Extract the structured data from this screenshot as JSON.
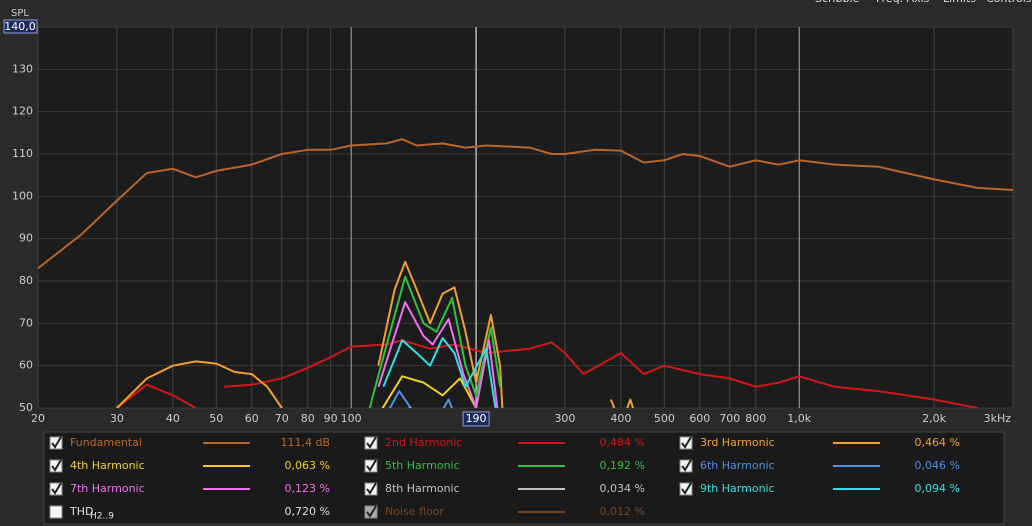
{
  "chart_data": {
    "type": "line",
    "log_x": true,
    "y_label": "SPL",
    "x_unit": "kHz",
    "xlim": [
      20,
      3000
    ],
    "ylim": [
      50,
      140
    ],
    "xticks": [
      20,
      30,
      40,
      50,
      60,
      70,
      80,
      90,
      100,
      300,
      400,
      500,
      600,
      700,
      800,
      {
        "value": 1000,
        "label": "1,0k"
      },
      {
        "value": 2000,
        "label": "2,0k"
      },
      {
        "value": 3000,
        "label": "3kHz"
      }
    ],
    "yticks": [
      50,
      60,
      70,
      80,
      90,
      100,
      110,
      120,
      130,
      {
        "value": 140,
        "label": "140,0"
      }
    ],
    "cursor": 190,
    "menu": [
      "Scribble",
      "Freq. Axis",
      "Limits",
      "Controls"
    ],
    "series": [
      {
        "name": "Fundamental",
        "color": "#b8652a",
        "checked": true,
        "legend_value": "111,4 dB",
        "x": [
          20,
          25,
          30,
          35,
          40,
          45,
          50,
          60,
          70,
          80,
          90,
          100,
          120,
          130,
          140,
          160,
          180,
          200,
          250,
          280,
          300,
          350,
          400,
          450,
          500,
          550,
          600,
          700,
          800,
          900,
          1000,
          1200,
          1500,
          2000,
          2500,
          3000
        ],
        "values": [
          83,
          91,
          99,
          105.5,
          106.5,
          104.5,
          106,
          107.5,
          110,
          111,
          111,
          112,
          112.5,
          113.5,
          112,
          112.5,
          111.5,
          112,
          111.5,
          110,
          110,
          111,
          110.8,
          108,
          108.5,
          110,
          109.5,
          107,
          108.5,
          107.5,
          108.5,
          107.5,
          107,
          104,
          102,
          101.5
        ]
      },
      {
        "name": "2nd Harmonic",
        "color": "#d01818",
        "checked": true,
        "legend_value": "0,484 %",
        "x": [
          30,
          35,
          40,
          45,
          50,
          52,
          60,
          70,
          80,
          90,
          100,
          120,
          130,
          150,
          170,
          200,
          250,
          280,
          300,
          330,
          400,
          450,
          500,
          600,
          700,
          800,
          900,
          1000,
          1200,
          1500,
          2000,
          2500
        ],
        "values": [
          50,
          55.5,
          53,
          50,
          null,
          55,
          55.5,
          57,
          59.5,
          62,
          64.5,
          65,
          66,
          64,
          65,
          63,
          64,
          65.5,
          63,
          58,
          63,
          58,
          60,
          58,
          57,
          55,
          56,
          57.5,
          55,
          54,
          52,
          50
        ]
      },
      {
        "name": "3rd Harmonic",
        "color": "#f0a030",
        "checked": true,
        "legend_value": "0,464 %",
        "x": [
          30,
          35,
          40,
          45,
          50,
          55,
          60,
          65,
          70,
          75,
          100,
          115,
          125,
          132,
          140,
          150,
          160,
          170,
          180,
          190,
          205,
          215,
          220,
          350,
          380,
          400,
          420,
          440
        ],
        "values": [
          50,
          57,
          60,
          61,
          60.5,
          58.5,
          58,
          55,
          50,
          45,
          null,
          60,
          78,
          84.5,
          78,
          70,
          77,
          78.5,
          68,
          56,
          72,
          60,
          40,
          null,
          52,
          46,
          52,
          45
        ]
      },
      {
        "name": "4th Harmonic",
        "color": "#f0d020",
        "checked": true,
        "legend_value": "0,063 %",
        "x": [
          110,
          130,
          145,
          160,
          175,
          190
        ],
        "values": [
          45,
          57.5,
          56,
          53,
          57,
          50
        ]
      },
      {
        "name": "5th Harmonic",
        "color": "#30c040",
        "checked": true,
        "legend_value": "0,192 %",
        "x": [
          110,
          120,
          132,
          145,
          155,
          168,
          180,
          190,
          205,
          215
        ],
        "values": [
          50,
          65,
          81,
          70,
          68,
          76,
          60,
          53,
          69,
          55
        ]
      },
      {
        "name": "6th Harmonic",
        "color": "#5090e0",
        "checked": true,
        "legend_value": "0,046 %",
        "x": [
          115,
          128,
          140,
          155,
          165,
          175
        ],
        "values": [
          45,
          54,
          48,
          47,
          52,
          45
        ]
      },
      {
        "name": "7th Harmonic",
        "color": "#f070f0",
        "checked": true,
        "legend_value": "0,123 %",
        "x": [
          115,
          132,
          145,
          152,
          165,
          178,
          190,
          203,
          212
        ],
        "values": [
          55,
          75,
          67,
          65,
          71,
          58,
          50,
          66,
          50
        ]
      },
      {
        "name": "8th Harmonic",
        "color": "#c0c0c0",
        "checked": true,
        "legend_value": "0,034 %",
        "x": [
          125,
          135,
          145
        ],
        "values": [
          45,
          50,
          46
        ]
      },
      {
        "name": "9th Harmonic",
        "color": "#30e0e0",
        "checked": true,
        "legend_value": "0,094 %",
        "x": [
          118,
          130,
          140,
          150,
          160,
          170,
          180,
          200,
          210
        ],
        "values": [
          55,
          66,
          63,
          60,
          66.5,
          63,
          55,
          64,
          50
        ]
      },
      {
        "name": "THD",
        "name_sub": "H2..9",
        "color": "#e0e0e0",
        "checked": false,
        "legend_value": "0,720 %"
      },
      {
        "name": "Noise floor",
        "color": "#7a4422",
        "checked": true,
        "legend_value": "0,012 %"
      }
    ]
  }
}
